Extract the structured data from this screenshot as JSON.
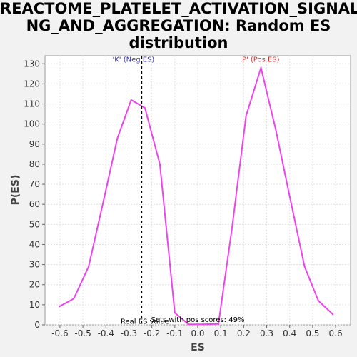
{
  "chart_data": {
    "type": "line",
    "title_lines": [
      "REACTOME_PLATELET_ACTIVATION_SIGNALI",
      "NG_AND_AGGREGATION: Random ES",
      "distribution"
    ],
    "xlabel": "ES",
    "ylabel": "P(ES)",
    "xlim": [
      -0.665,
      0.665
    ],
    "ylim": [
      0,
      134
    ],
    "xticks": [
      -0.6,
      -0.5,
      -0.4,
      -0.3,
      -0.2,
      -0.1,
      0.0,
      0.1,
      0.2,
      0.3,
      0.4,
      0.5,
      0.6
    ],
    "xtick_labels": [
      "-0.6",
      "-0.5",
      "-0.4",
      "-0.3",
      "-0.2",
      "-0.1",
      "0.0",
      "0.1",
      "0.2",
      "0.3",
      "0.4",
      "0.5",
      "0.6"
    ],
    "yticks": [
      0,
      10,
      20,
      30,
      40,
      50,
      60,
      70,
      80,
      90,
      100,
      110,
      120,
      130
    ],
    "ytick_labels": [
      "0",
      "10",
      "20",
      "30",
      "40",
      "50",
      "60",
      "70",
      "80",
      "90",
      "100",
      "110",
      "120",
      "130"
    ],
    "grid": true,
    "series": [
      {
        "color": "#ee44ee",
        "x": [
          -0.605,
          -0.54,
          -0.475,
          -0.41,
          -0.35,
          -0.29,
          -0.23,
          -0.165,
          -0.1,
          -0.04,
          0.025,
          0.09,
          0.15,
          0.21,
          0.275,
          0.34,
          0.4,
          0.465,
          0.525,
          0.59
        ],
        "y": [
          9,
          13,
          29,
          62,
          93,
          112,
          108,
          80,
          6,
          0.3,
          0.3,
          0.5,
          49,
          104,
          128,
          97,
          64,
          29,
          12,
          5
        ]
      }
    ],
    "annotations": [
      {
        "text": "'K' (Neg ES)",
        "color": "#3333aa",
        "x": -0.28,
        "y": 131
      },
      {
        "text": "'P' (Pos ES)",
        "color": "#cc3333",
        "x": 0.27,
        "y": 131
      },
      {
        "text": "Real ES value",
        "color": "#000000",
        "x": -0.23,
        "y": 0.5
      },
      {
        "text": "Sets with pos scores: 49%",
        "color": "#000000",
        "x": 0.0,
        "y": 1.5
      }
    ],
    "real_es_value": -0.245
  }
}
